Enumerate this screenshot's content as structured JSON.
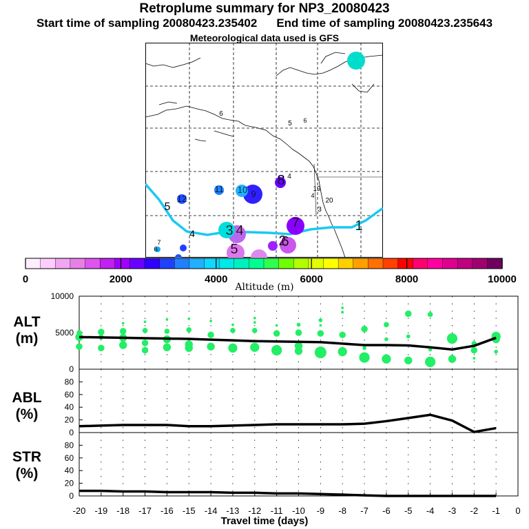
{
  "header": {
    "title": "Retroplume summary for NP3_20080423",
    "start_time": "Start time of sampling 20080423.235402",
    "end_time": "End time of sampling 20080423.235643",
    "met_data": "Meteorological data used is GFS"
  },
  "colorbar": {
    "label": "Altitude (m)",
    "tick_labels": [
      "0",
      "2000",
      "4000",
      "6000",
      "8000",
      "10000"
    ],
    "colors": [
      "#ffeeff",
      "#ffccff",
      "#f2a6f2",
      "#e680e6",
      "#dd55ee",
      "#c020f0",
      "#a000ff",
      "#6a00ff",
      "#3000ff",
      "#2040ff",
      "#2080ff",
      "#20b0ff",
      "#10d8ff",
      "#00e8e8",
      "#00f0c0",
      "#00ff90",
      "#30ff50",
      "#70ff00",
      "#b0ff00",
      "#e0ff00",
      "#ffff00",
      "#ffd000",
      "#ffa000",
      "#ff7000",
      "#ff4000",
      "#ff0000",
      "#ff0070",
      "#ff00a0",
      "#e00090",
      "#c00080",
      "#a00070",
      "#700060"
    ]
  },
  "map_labels": [
    {
      "text": "1",
      "color": "#00e8e8"
    },
    {
      "text": "2",
      "color": "#cc44ee"
    },
    {
      "text": "3",
      "color": "#00f0f0"
    },
    {
      "text": "4",
      "color": "#e680e6"
    },
    {
      "text": "5",
      "color": "#dd77ee"
    },
    {
      "text": "6",
      "color": "#cc55ee"
    },
    {
      "text": "7",
      "color": "#a000ff"
    },
    {
      "text": "8",
      "color": "#6a00ff"
    },
    {
      "text": "9",
      "color": "#3030ff"
    },
    {
      "text": "10",
      "color": "#20b0ff"
    },
    {
      "text": "11",
      "color": "#2080ff"
    },
    {
      "text": "12",
      "color": "#2050ff"
    },
    {
      "text": "19",
      "color": "#70ff00"
    },
    {
      "text": "20",
      "color": "#b0ff00"
    },
    {
      "text": "6",
      "color": "#000000"
    },
    {
      "text": "5",
      "color": "#000000"
    },
    {
      "text": "4",
      "color": "#000000"
    },
    {
      "text": "3",
      "color": "#000000"
    }
  ],
  "chart_data": [
    {
      "type": "scatter",
      "title": "ALT",
      "ylabel": "ALT\n(m)",
      "ylim": [
        0,
        10000
      ],
      "y_ticks": [
        0,
        5000,
        10000
      ],
      "x_ticks": [
        -20,
        -19,
        -18,
        -17,
        -16,
        -15,
        -14,
        -13,
        -12,
        -11,
        -10,
        -9,
        -8,
        -7,
        -6,
        -5,
        -4,
        -3,
        -2,
        -1,
        0
      ],
      "xlim": [
        -20,
        0
      ],
      "series": [
        {
          "name": "mean altitude",
          "x": [
            -20,
            -19,
            -18,
            -17,
            -16,
            -15,
            -14,
            -13,
            -12,
            -11,
            -10,
            -9,
            -8,
            -7,
            -6,
            -5,
            -4,
            -3,
            -2,
            -1
          ],
          "values": [
            4400,
            4350,
            4300,
            4250,
            4200,
            4150,
            4050,
            3950,
            3850,
            3800,
            3750,
            3700,
            3500,
            3300,
            3300,
            3250,
            3000,
            2700,
            3200,
            4300
          ]
        },
        {
          "name": "cluster altitudes",
          "points": [
            [
              -20,
              4400,
              6
            ],
            [
              -20,
              3100,
              5
            ],
            [
              -20,
              5000,
              4
            ],
            [
              -19,
              5100,
              5
            ],
            [
              -19,
              4400,
              4
            ],
            [
              -19,
              2900,
              5
            ],
            [
              -18,
              5200,
              5
            ],
            [
              -18,
              4300,
              6
            ],
            [
              -18,
              3300,
              6
            ],
            [
              -18,
              6300,
              2
            ],
            [
              -17,
              5300,
              4
            ],
            [
              -17,
              3600,
              5
            ],
            [
              -17,
              2600,
              5
            ],
            [
              -17,
              6500,
              2
            ],
            [
              -16,
              5200,
              4
            ],
            [
              -16,
              4100,
              6
            ],
            [
              -16,
              3000,
              6
            ],
            [
              -16,
              6800,
              2
            ],
            [
              -15,
              5400,
              4
            ],
            [
              -15,
              3400,
              6
            ],
            [
              -15,
              2900,
              6
            ],
            [
              -15,
              6900,
              2
            ],
            [
              -14,
              4700,
              5
            ],
            [
              -14,
              3100,
              6
            ],
            [
              -14,
              6600,
              2
            ],
            [
              -13,
              5300,
              4
            ],
            [
              -13,
              2900,
              7
            ],
            [
              -13,
              6100,
              2
            ],
            [
              -12,
              5300,
              4
            ],
            [
              -12,
              3000,
              7
            ],
            [
              -12,
              6400,
              2
            ],
            [
              -12,
              7000,
              2
            ],
            [
              -11,
              4900,
              5
            ],
            [
              -11,
              2600,
              8
            ],
            [
              -11,
              6000,
              2
            ],
            [
              -10,
              5000,
              5
            ],
            [
              -10,
              3200,
              6
            ],
            [
              -10,
              2500,
              6
            ],
            [
              -10,
              6100,
              3
            ],
            [
              -9,
              4900,
              5
            ],
            [
              -9,
              2300,
              9
            ],
            [
              -9,
              6700,
              3
            ],
            [
              -9,
              6000,
              2
            ],
            [
              -8,
              4700,
              5
            ],
            [
              -8,
              2400,
              7
            ],
            [
              -8,
              7800,
              2
            ],
            [
              -8,
              8400,
              2
            ],
            [
              -7,
              5500,
              5
            ],
            [
              -7,
              1600,
              8
            ],
            [
              -7,
              2900,
              3
            ],
            [
              -6,
              6100,
              4
            ],
            [
              -6,
              1400,
              7
            ],
            [
              -6,
              4100,
              3
            ],
            [
              -5,
              7600,
              5
            ],
            [
              -5,
              1200,
              6
            ],
            [
              -5,
              4500,
              3
            ],
            [
              -4,
              7500,
              4
            ],
            [
              -4,
              1000,
              8
            ],
            [
              -4,
              2700,
              3
            ],
            [
              -3,
              4200,
              8
            ],
            [
              -3,
              1400,
              6
            ],
            [
              -2,
              3500,
              4
            ],
            [
              -2,
              2600,
              5
            ],
            [
              -2,
              1500,
              2
            ],
            [
              -1,
              4500,
              7
            ],
            [
              -1,
              4100,
              6
            ],
            [
              -1,
              2400,
              3
            ]
          ]
        }
      ]
    },
    {
      "type": "line",
      "title": "ABL",
      "ylabel": "ABL\n(%)",
      "ylim": [
        0,
        100
      ],
      "y_ticks": [
        0,
        20,
        40,
        60,
        80
      ],
      "xlim": [
        -20,
        0
      ],
      "series": [
        {
          "name": "ABL fraction",
          "x": [
            -20,
            -19,
            -18,
            -17,
            -16,
            -15,
            -14,
            -13,
            -12,
            -11,
            -10,
            -9,
            -8,
            -7,
            -6,
            -5,
            -4,
            -3,
            -2,
            -1
          ],
          "values": [
            10,
            11,
            12,
            12,
            12,
            10,
            10,
            11,
            12,
            13,
            13,
            13,
            13,
            14,
            18,
            23,
            28,
            19,
            1,
            7
          ]
        }
      ]
    },
    {
      "type": "line",
      "title": "STR",
      "ylabel": "STR\n(%)",
      "ylim": [
        0,
        100
      ],
      "y_ticks": [
        0,
        20,
        40,
        60,
        80
      ],
      "xlim": [
        -20,
        0
      ],
      "xlabel": "Travel time (days)",
      "series": [
        {
          "name": "stratospheric fraction",
          "x": [
            -20,
            -19,
            -18,
            -17,
            -16,
            -15,
            -14,
            -13,
            -12,
            -11,
            -10,
            -9,
            -8,
            -7,
            -6,
            -5,
            -4,
            -3,
            -2,
            -1
          ],
          "values": [
            8,
            8,
            7,
            7,
            6,
            6,
            6,
            5,
            5,
            4,
            4,
            3,
            2,
            1,
            0,
            0,
            0,
            0,
            0,
            0
          ]
        }
      ]
    }
  ],
  "panel_labels": {
    "alt": "ALT\n(m)",
    "abl": "ABL\n(%)",
    "str": "STR\n(%)"
  }
}
